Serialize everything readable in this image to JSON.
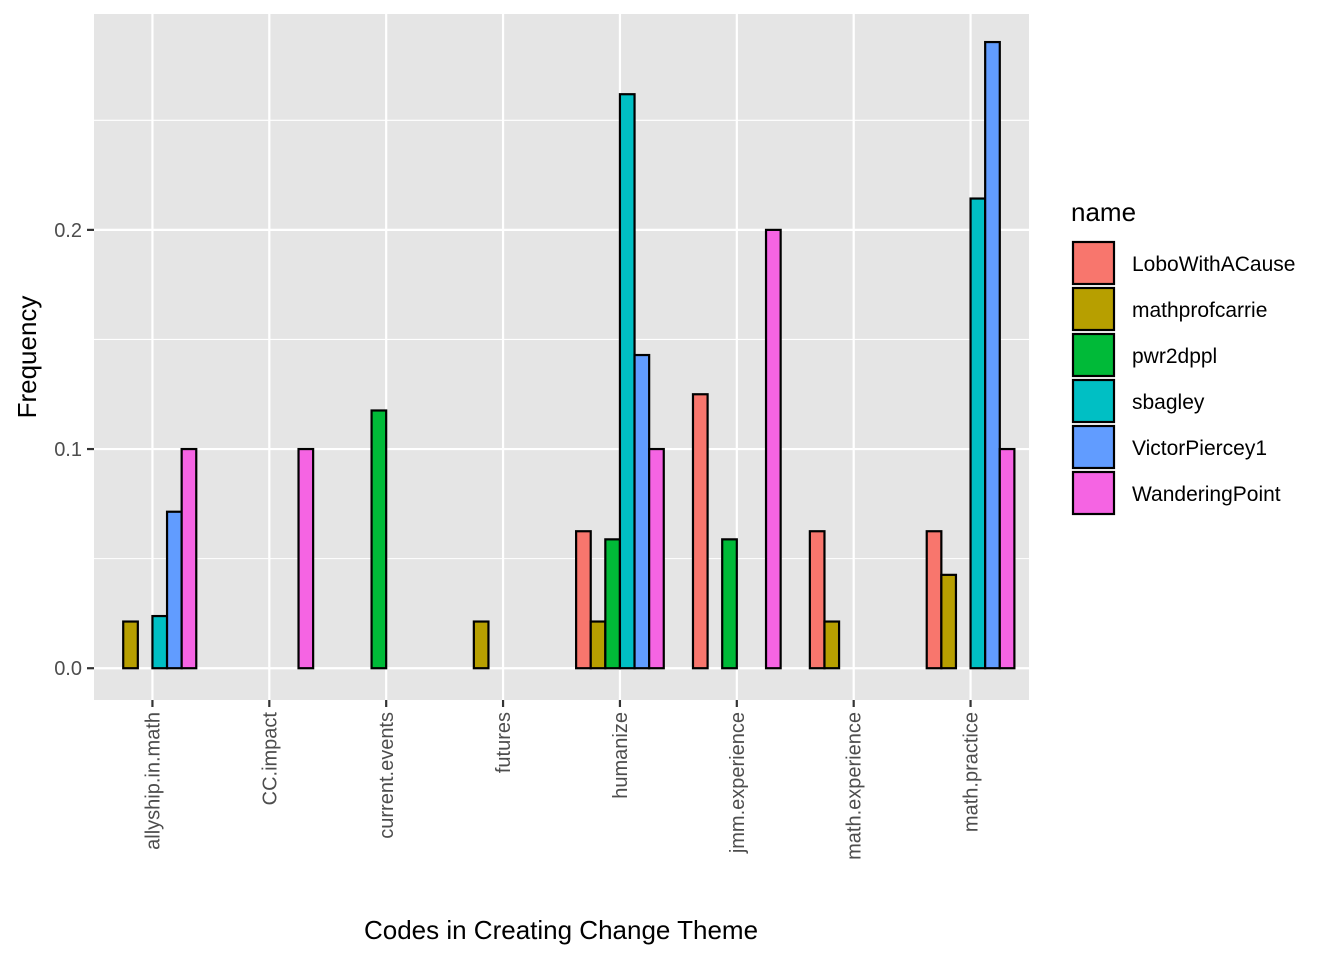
{
  "chart_data": {
    "type": "bar",
    "xlabel": "Codes in Creating Change Theme",
    "ylabel": "Frequency",
    "ylim": [
      -0.0145,
      0.2985
    ],
    "yticks": [
      0.0,
      0.1,
      0.2
    ],
    "ytick_labels": [
      "0.0",
      "0.1",
      "0.2"
    ],
    "grid": true,
    "legend": {
      "title": "name",
      "position": "right"
    },
    "categories": [
      "allyship.in.math",
      "CC.impact",
      "current.events",
      "futures",
      "humanize",
      "jmm.experience",
      "math.experience",
      "math.practice"
    ],
    "series": [
      {
        "name": "LoboWithACause",
        "color": "#F8766D",
        "values": [
          0,
          0,
          0,
          0,
          0.0625,
          0.125,
          0.0625,
          0.0625
        ]
      },
      {
        "name": "mathprofcarrie",
        "color": "#B79F00",
        "values": [
          0.0213,
          0,
          0,
          0.0213,
          0.0213,
          0,
          0.0213,
          0.0426
        ]
      },
      {
        "name": "pwr2dppl",
        "color": "#00BA38",
        "values": [
          0,
          0,
          0.1176,
          0,
          0.0588,
          0.0588,
          0,
          0
        ]
      },
      {
        "name": "sbagley",
        "color": "#00BFC4",
        "values": [
          0.0238,
          0,
          0,
          0,
          0.2619,
          0,
          0,
          0.2143
        ]
      },
      {
        "name": "VictorPiercey1",
        "color": "#619CFF",
        "values": [
          0.0714,
          0,
          0,
          0,
          0.1429,
          0,
          0,
          0.2857
        ]
      },
      {
        "name": "WanderingPoint",
        "color": "#F564E3",
        "values": [
          0.1,
          0.1,
          0,
          0,
          0.1,
          0.2,
          0,
          0.1
        ]
      }
    ]
  },
  "colors": {
    "panel_background": "#E5E5E5",
    "grid_major": "#FFFFFF",
    "bar_outline": "#000000"
  }
}
